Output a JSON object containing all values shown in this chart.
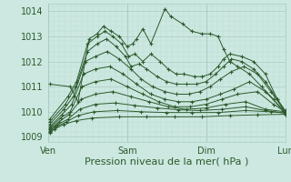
{
  "bg_color": "#cce8e0",
  "line_color": "#2d5a2d",
  "grid_major_color": "#aaccc4",
  "grid_minor_color": "#bbddd6",
  "xlabel": "Pression niveau de la mer( hPa )",
  "xlabel_fontsize": 8,
  "yticks": [
    1009,
    1010,
    1011,
    1012,
    1013,
    1014
  ],
  "ylim": [
    1008.8,
    1014.3
  ],
  "xtick_labels": [
    "Ven",
    "Sam",
    "Dim",
    "Lun"
  ],
  "xtick_positions": [
    0,
    1,
    2,
    3
  ],
  "xlim": [
    0.0,
    3.0
  ],
  "forecast_lines": [
    {
      "x": [
        0.02,
        0.28,
        0.38,
        0.52,
        0.62,
        0.7,
        0.8,
        0.9,
        1.0,
        1.07,
        1.12,
        1.2,
        1.3,
        1.48,
        1.55,
        1.7,
        1.82,
        1.95,
        2.05,
        2.15,
        2.22,
        2.3,
        2.4,
        2.55,
        2.7,
        2.85,
        3.0
      ],
      "y": [
        1011.1,
        1011.0,
        1010.4,
        1012.9,
        1013.1,
        1013.4,
        1013.2,
        1013.0,
        1012.6,
        1012.7,
        1012.9,
        1013.3,
        1012.7,
        1014.1,
        1013.8,
        1013.5,
        1013.2,
        1013.1,
        1013.1,
        1013.0,
        1012.5,
        1012.0,
        1011.8,
        1011.5,
        1011.0,
        1010.5,
        1009.9
      ]
    },
    {
      "x": [
        0.02,
        0.25,
        0.36,
        0.5,
        0.62,
        0.72,
        0.82,
        0.93,
        1.02,
        1.1,
        1.2,
        1.3,
        1.42,
        1.52,
        1.62,
        1.72,
        1.85,
        1.95,
        2.05,
        2.15,
        2.22,
        2.3,
        2.45,
        2.6,
        2.75,
        2.9,
        3.0
      ],
      "y": [
        1009.7,
        1010.6,
        1011.2,
        1012.7,
        1013.0,
        1013.2,
        1013.0,
        1012.7,
        1012.2,
        1012.3,
        1012.0,
        1012.3,
        1012.0,
        1011.7,
        1011.5,
        1011.5,
        1011.4,
        1011.4,
        1011.5,
        1011.8,
        1012.1,
        1012.3,
        1012.2,
        1012.0,
        1011.5,
        1010.5,
        1010.0
      ]
    },
    {
      "x": [
        0.02,
        0.22,
        0.35,
        0.5,
        0.62,
        0.74,
        0.86,
        0.98,
        1.05,
        1.15,
        1.25,
        1.38,
        1.5,
        1.62,
        1.75,
        1.88,
        2.0,
        2.12,
        2.22,
        2.32,
        2.45,
        2.6,
        2.75,
        2.9,
        3.0
      ],
      "y": [
        1009.6,
        1010.3,
        1011.0,
        1012.4,
        1012.7,
        1012.9,
        1012.6,
        1012.2,
        1011.8,
        1011.9,
        1011.7,
        1011.4,
        1011.2,
        1011.1,
        1011.1,
        1011.1,
        1011.2,
        1011.5,
        1011.8,
        1012.1,
        1012.0,
        1011.7,
        1011.2,
        1010.5,
        1010.05
      ]
    },
    {
      "x": [
        0.02,
        0.2,
        0.32,
        0.47,
        0.6,
        0.75,
        0.9,
        1.05,
        1.18,
        1.32,
        1.48,
        1.62,
        1.78,
        1.92,
        2.05,
        2.18,
        2.32,
        2.48,
        2.65,
        2.82,
        3.0
      ],
      "y": [
        1009.5,
        1010.1,
        1010.6,
        1012.0,
        1012.2,
        1012.4,
        1012.1,
        1011.7,
        1011.3,
        1011.0,
        1010.8,
        1010.7,
        1010.7,
        1010.8,
        1011.0,
        1011.3,
        1011.6,
        1011.8,
        1011.5,
        1010.8,
        1010.0
      ]
    },
    {
      "x": [
        0.02,
        0.18,
        0.3,
        0.45,
        0.6,
        0.78,
        0.95,
        1.12,
        1.3,
        1.48,
        1.65,
        1.82,
        2.0,
        2.18,
        2.35,
        2.55,
        2.75,
        3.0
      ],
      "y": [
        1009.4,
        1009.9,
        1010.3,
        1011.5,
        1011.7,
        1011.8,
        1011.5,
        1011.1,
        1010.7,
        1010.5,
        1010.4,
        1010.4,
        1010.5,
        1010.7,
        1010.9,
        1011.2,
        1010.8,
        1010.0
      ]
    },
    {
      "x": [
        0.02,
        0.16,
        0.28,
        0.43,
        0.6,
        0.8,
        1.0,
        1.2,
        1.4,
        1.6,
        1.8,
        2.0,
        2.2,
        2.4,
        2.65,
        2.85,
        3.0
      ],
      "y": [
        1009.35,
        1009.75,
        1010.0,
        1011.0,
        1011.2,
        1011.3,
        1011.0,
        1010.7,
        1010.4,
        1010.2,
        1010.2,
        1010.3,
        1010.5,
        1010.7,
        1010.8,
        1010.3,
        1010.0
      ]
    },
    {
      "x": [
        0.02,
        0.14,
        0.27,
        0.42,
        0.6,
        0.82,
        1.05,
        1.28,
        1.52,
        1.75,
        2.0,
        2.25,
        2.5,
        2.75,
        3.0
      ],
      "y": [
        1009.3,
        1009.6,
        1009.9,
        1010.5,
        1010.7,
        1010.8,
        1010.6,
        1010.4,
        1010.2,
        1010.1,
        1010.15,
        1010.3,
        1010.4,
        1010.1,
        1010.0
      ]
    },
    {
      "x": [
        0.02,
        0.12,
        0.25,
        0.4,
        0.6,
        0.85,
        1.1,
        1.38,
        1.65,
        1.92,
        2.2,
        2.5,
        2.75,
        3.0
      ],
      "y": [
        1009.25,
        1009.5,
        1009.7,
        1010.1,
        1010.3,
        1010.35,
        1010.25,
        1010.15,
        1010.08,
        1010.05,
        1010.1,
        1010.2,
        1010.05,
        1009.95
      ]
    },
    {
      "x": [
        0.02,
        0.1,
        0.23,
        0.38,
        0.58,
        0.88,
        1.18,
        1.5,
        1.82,
        2.15,
        2.5,
        2.82,
        3.0
      ],
      "y": [
        1009.2,
        1009.4,
        1009.6,
        1009.85,
        1010.0,
        1010.05,
        1010.0,
        1009.97,
        1009.97,
        1009.97,
        1010.05,
        1010.0,
        1009.95
      ]
    },
    {
      "x": [
        0.02,
        0.08,
        0.2,
        0.36,
        0.56,
        0.9,
        1.25,
        1.6,
        1.95,
        2.3,
        2.65,
        3.0
      ],
      "y": [
        1009.15,
        1009.3,
        1009.5,
        1009.65,
        1009.75,
        1009.8,
        1009.8,
        1009.8,
        1009.8,
        1009.85,
        1009.88,
        1009.9
      ]
    }
  ]
}
